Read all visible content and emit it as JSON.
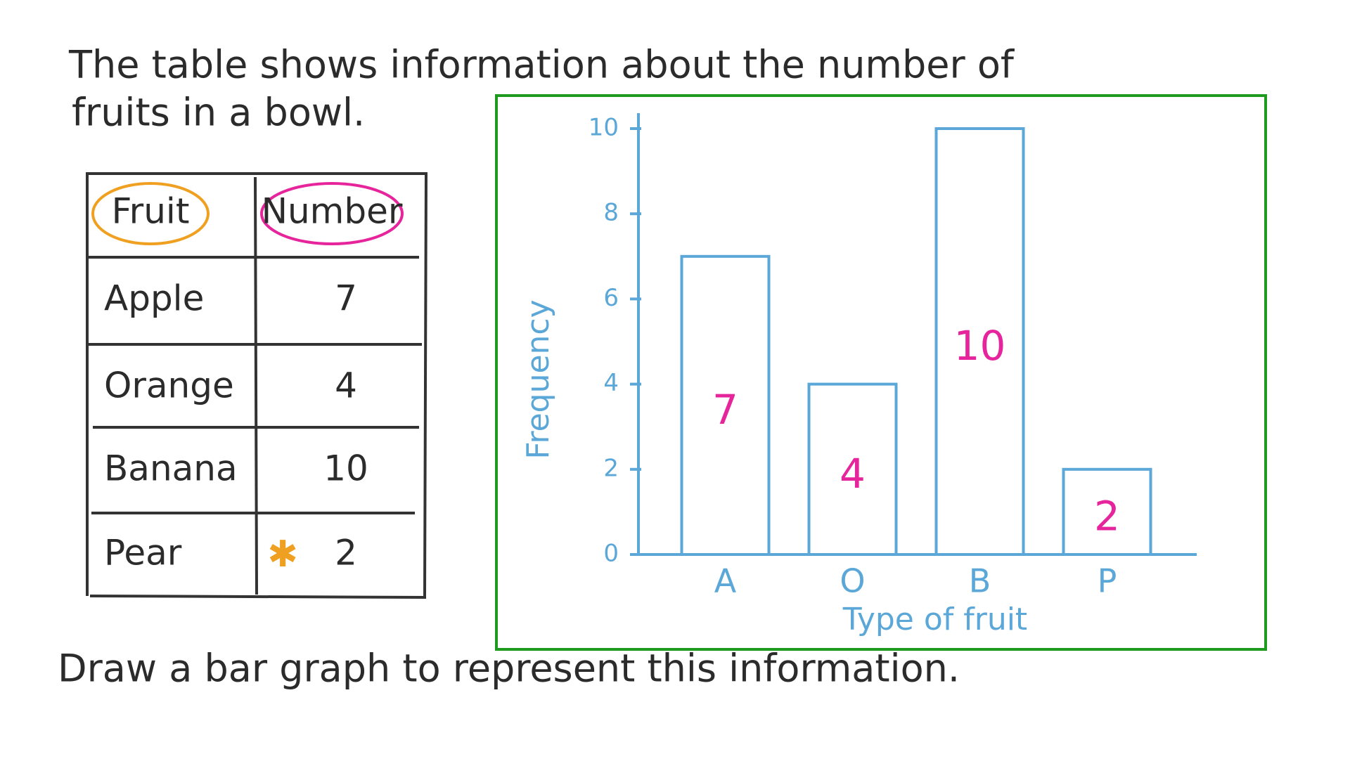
{
  "intro": [
    "The table shows information about the number of",
    "fruits in a bowl."
  ],
  "table": {
    "header": [
      "Fruit",
      "Number"
    ],
    "rows": [
      [
        "Apple",
        7
      ],
      [
        "Orange",
        4
      ],
      [
        "Banana",
        10
      ],
      [
        "Pear",
        2
      ]
    ]
  },
  "chart_data": {
    "type": "bar",
    "ylabel": "Frequency",
    "xlabel": "Type of fruit",
    "categories": [
      "A",
      "O",
      "B",
      "P"
    ],
    "values": [
      7,
      4,
      10,
      2
    ],
    "ylim": [
      0,
      10
    ],
    "yticks": [
      0,
      2,
      4,
      6,
      8,
      10
    ],
    "color": "#5aa7d8",
    "label_color": "#e6249c",
    "frame_color": "#1e9a1e"
  },
  "instruction": "Draw a bar graph to represent this information."
}
